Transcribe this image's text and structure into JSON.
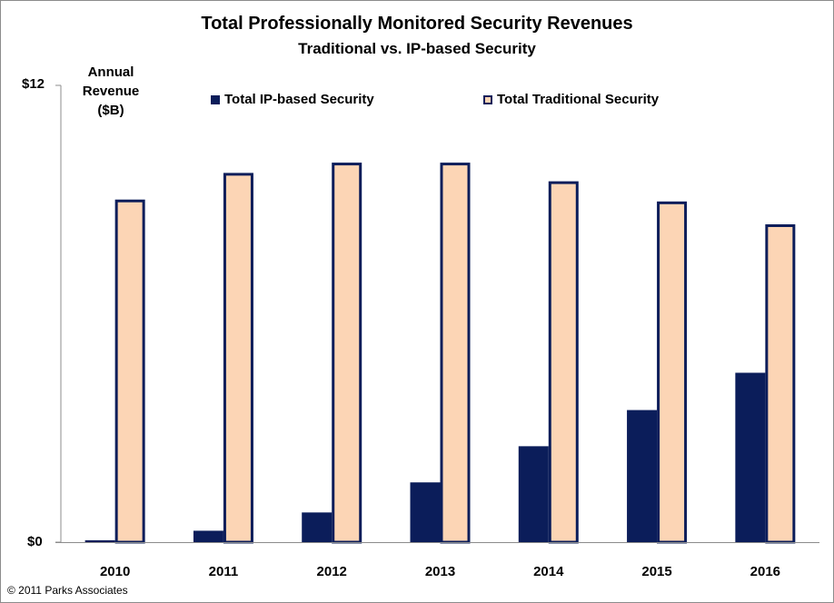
{
  "chart_data": {
    "type": "bar",
    "title": "Total Professionally Monitored Security Revenues",
    "subtitle": "Traditional vs. IP-based Security",
    "ylabel": "Annual Revenue ($B)",
    "y_tick_labels": [
      "$12",
      "$0"
    ],
    "ylim": [
      0,
      12
    ],
    "categories": [
      "2010",
      "2011",
      "2012",
      "2013",
      "2014",
      "2015",
      "2016"
    ],
    "series": [
      {
        "name": "Total IP-based Security",
        "values": [
          0.05,
          0.3,
          0.78,
          1.57,
          2.52,
          3.47,
          4.45
        ],
        "color": "#0b1d5a"
      },
      {
        "name": "Total Traditional Security",
        "values": [
          9.0,
          9.7,
          9.97,
          9.97,
          9.48,
          8.95,
          8.35
        ],
        "color": "#fcd5b5"
      }
    ],
    "legend_placement": "top",
    "grid": false
  },
  "credit": "© 2011 Parks Associates"
}
